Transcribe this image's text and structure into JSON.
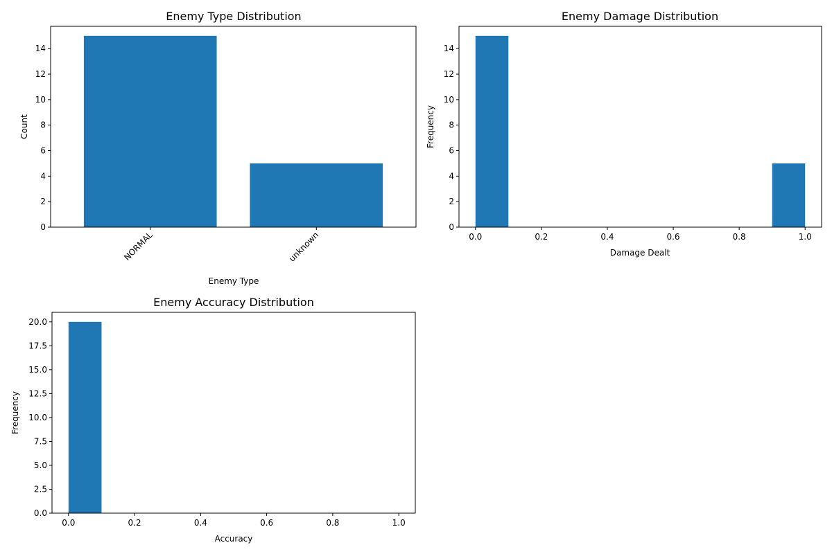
{
  "chart_data": [
    {
      "type": "bar",
      "title": "Enemy Type Distribution",
      "xlabel": "Enemy Type",
      "ylabel": "Count",
      "categories": [
        "NORMAL",
        "unknown"
      ],
      "values": [
        15,
        5
      ],
      "ylim": [
        0,
        15.75
      ],
      "yticks": [
        0,
        2,
        4,
        6,
        8,
        10,
        12,
        14
      ],
      "ytick_labels": [
        "0",
        "2",
        "4",
        "6",
        "8",
        "10",
        "12",
        "14"
      ],
      "xtick_rotation": 45,
      "color": "#1f77b4",
      "grid": false
    },
    {
      "type": "bar",
      "subtype": "histogram",
      "title": "Enemy Damage Distribution",
      "xlabel": "Damage Dealt",
      "ylabel": "Frequency",
      "bins": [
        {
          "x0": 0.0,
          "x1": 0.1,
          "count": 15
        },
        {
          "x0": 0.9,
          "x1": 1.0,
          "count": 5
        }
      ],
      "xlim": [
        -0.05,
        1.05
      ],
      "ylim": [
        0,
        15.75
      ],
      "xticks": [
        0.0,
        0.2,
        0.4,
        0.6,
        0.8,
        1.0
      ],
      "xtick_labels": [
        "0.0",
        "0.2",
        "0.4",
        "0.6",
        "0.8",
        "1.0"
      ],
      "yticks": [
        0,
        2,
        4,
        6,
        8,
        10,
        12,
        14
      ],
      "ytick_labels": [
        "0",
        "2",
        "4",
        "6",
        "8",
        "10",
        "12",
        "14"
      ],
      "color": "#1f77b4",
      "grid": false
    },
    {
      "type": "bar",
      "subtype": "histogram",
      "title": "Enemy Accuracy Distribution",
      "xlabel": "Accuracy",
      "ylabel": "Frequency",
      "bins": [
        {
          "x0": 0.0,
          "x1": 0.1,
          "count": 20
        }
      ],
      "xlim": [
        -0.05,
        1.05
      ],
      "ylim": [
        0,
        21
      ],
      "xticks": [
        0.0,
        0.2,
        0.4,
        0.6,
        0.8,
        1.0
      ],
      "xtick_labels": [
        "0.0",
        "0.2",
        "0.4",
        "0.6",
        "0.8",
        "1.0"
      ],
      "yticks": [
        0,
        2.5,
        5,
        7.5,
        10,
        12.5,
        15,
        17.5,
        20
      ],
      "ytick_labels": [
        "0.0",
        "2.5",
        "5.0",
        "7.5",
        "10.0",
        "12.5",
        "15.0",
        "17.5",
        "20.0"
      ],
      "color": "#1f77b4",
      "grid": false
    }
  ]
}
